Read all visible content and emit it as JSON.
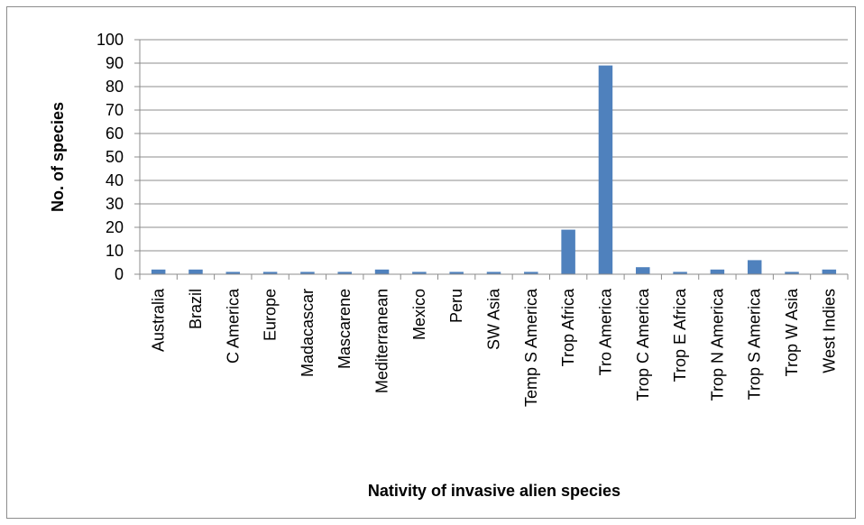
{
  "chart_data": {
    "type": "bar",
    "title": "",
    "xlabel": "Nativity of invasive alien species",
    "ylabel": "No. of species",
    "ylim": [
      0,
      100
    ],
    "yticks": [
      0,
      10,
      20,
      30,
      40,
      50,
      60,
      70,
      80,
      90,
      100
    ],
    "grid": true,
    "legend": "none",
    "bar_color": "#4f81bd",
    "categories": [
      "Australia",
      "Brazil",
      "C America",
      "Europe",
      "Madacascar",
      "Mascarene",
      "Mediterranean",
      "Mexico",
      "Peru",
      "SW Asia",
      "Temp S America",
      "Trop Africa",
      "Tro America",
      "Trop C America",
      "Trop E Africa",
      "Trop N America",
      "Trop S America",
      "Trop W Asia",
      "West Indies"
    ],
    "values": [
      2,
      2,
      1,
      1,
      1,
      1,
      2,
      1,
      1,
      1,
      1,
      19,
      89,
      3,
      1,
      2,
      6,
      1,
      2
    ]
  }
}
